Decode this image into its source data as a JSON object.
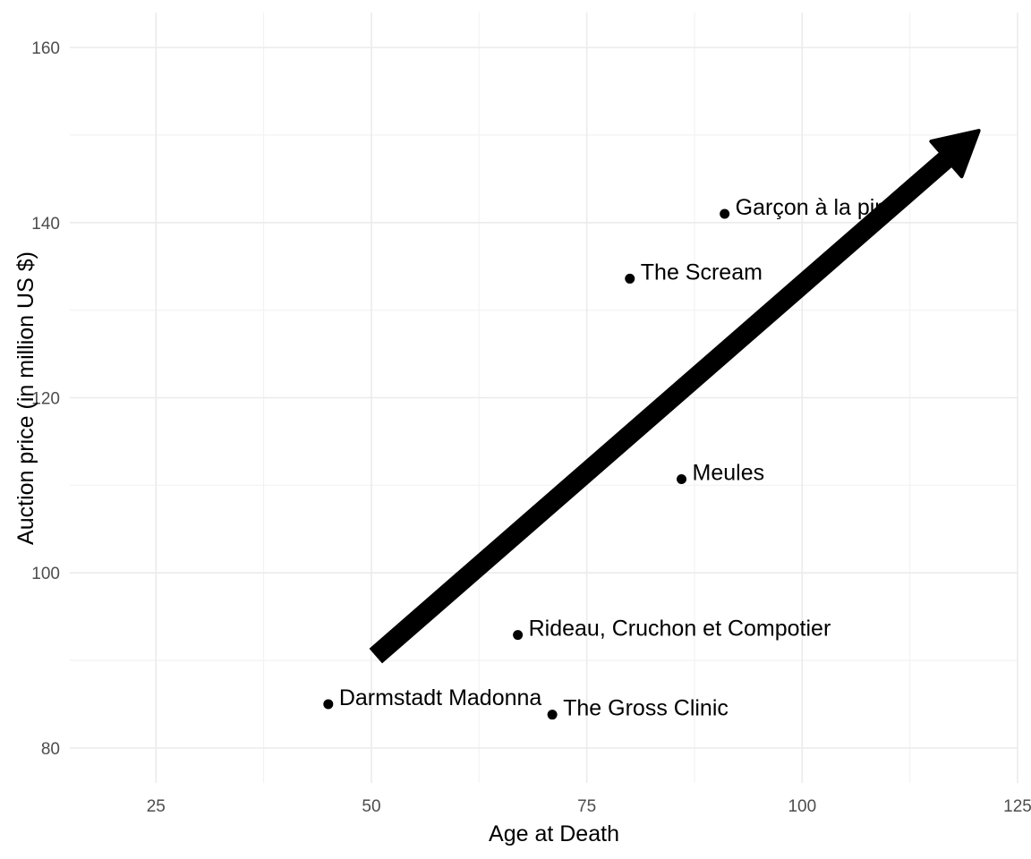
{
  "chart_data": {
    "type": "scatter",
    "title": "",
    "xlabel": "Age at Death",
    "ylabel": "Auction price (in million US $)",
    "xlim": [
      15,
      125
    ],
    "ylim": [
      76,
      164
    ],
    "x_ticks": [
      25,
      50,
      75,
      100,
      125
    ],
    "y_ticks": [
      80,
      100,
      120,
      140,
      160
    ],
    "grid": true,
    "points": [
      {
        "label": "Garçon à la pipe",
        "x": 91,
        "y": 141
      },
      {
        "label": "The Scream",
        "x": 80,
        "y": 133.6
      },
      {
        "label": "Meules",
        "x": 86,
        "y": 110.7
      },
      {
        "label": "Rideau, Cruchon et Compotier",
        "x": 67,
        "y": 92.9
      },
      {
        "label": "Darmstadt Madonna",
        "x": 45,
        "y": 85
      },
      {
        "label": "The Gross Clinic",
        "x": 71,
        "y": 83.8
      }
    ],
    "annotations": [
      {
        "type": "arrow",
        "x_start": 50.5,
        "y_start": 90.5,
        "x_end": 120.5,
        "y_end": 150.5
      }
    ],
    "colors": {
      "points": "#000000",
      "arrow": "#000000"
    }
  }
}
